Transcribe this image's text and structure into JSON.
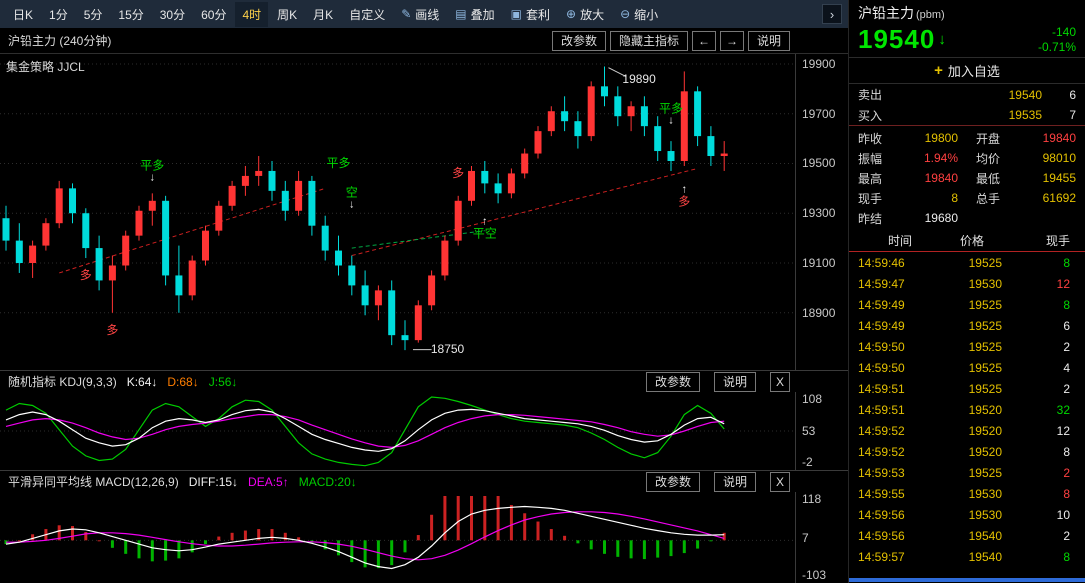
{
  "toolbar": {
    "items": [
      {
        "id": "daily-k",
        "label": "日K"
      },
      {
        "id": "1min",
        "label": "1分"
      },
      {
        "id": "5min",
        "label": "5分"
      },
      {
        "id": "15min",
        "label": "15分"
      },
      {
        "id": "30min",
        "label": "30分"
      },
      {
        "id": "60min",
        "label": "60分"
      },
      {
        "id": "4hour",
        "label": "4时",
        "active": true
      },
      {
        "id": "weekly-k",
        "label": "周K"
      },
      {
        "id": "monthly-k",
        "label": "月K"
      },
      {
        "id": "custom-period",
        "label": "自定义"
      },
      {
        "id": "draw-line",
        "label": "画线",
        "icon": "pencil-icon",
        "glyph": "✎"
      },
      {
        "id": "overlay",
        "label": "叠加",
        "icon": "layers-icon",
        "glyph": "▤"
      },
      {
        "id": "arbitrage",
        "label": "套利",
        "icon": "arbitrage-icon",
        "glyph": "▣"
      },
      {
        "id": "zoom-in",
        "label": "放大",
        "icon": "zoom-in-icon",
        "glyph": "⊕"
      },
      {
        "id": "zoom-out",
        "label": "缩小",
        "icon": "zoom-out-icon",
        "glyph": "⊖"
      }
    ],
    "expand": "›"
  },
  "chart_header": {
    "title": "沪铅主力 (240分钟)",
    "buttons": [
      "改参数",
      "隐藏主指标",
      "←",
      "→",
      "说明"
    ]
  },
  "main_chart": {
    "strategy_label": "集金策略 JJCL",
    "annotations": [
      {
        "text": "多",
        "color": "r",
        "ci": 6,
        "p": 19050
      },
      {
        "text": "多",
        "color": "r",
        "ci": 8,
        "p": 18830
      },
      {
        "text": "平多",
        "color": "g",
        "ci": 11,
        "p": 19470,
        "arrow": "down"
      },
      {
        "text": "平多",
        "color": "g",
        "ci": 25,
        "p": 19500
      },
      {
        "text": "空",
        "color": "g",
        "ci": 26,
        "p": 19360,
        "arrow": "down"
      },
      {
        "text": "多",
        "color": "r",
        "ci": 34,
        "p": 19460
      },
      {
        "text": "平空",
        "color": "g",
        "ci": 36,
        "p": 19240,
        "arrow": "up"
      },
      {
        "text": "平多",
        "color": "g",
        "ci": 50,
        "p": 19700,
        "arrow": "down"
      },
      {
        "text": "多",
        "color": "r",
        "ci": 51,
        "p": 19370,
        "arrow": "up"
      },
      {
        "text": "19890",
        "color": "w",
        "ci": 47.6,
        "p": 19840
      },
      {
        "text": "18750",
        "color": "w",
        "ci": 33.2,
        "p": 18755
      }
    ]
  },
  "kdj": {
    "title": "随机指标 KDJ(9,3,3)",
    "k": "K:64↓",
    "d": "D:68↓",
    "j": "J:56↓",
    "buttons": [
      "改参数",
      "说明",
      "X"
    ],
    "axis_labels": [
      108,
      53,
      -2
    ]
  },
  "macd": {
    "title": "平滑异同平均线 MACD(12,26,9)",
    "diff": "DIFF:15↓",
    "dea": "DEA:5↑",
    "macd": "MACD:20↓",
    "buttons": [
      "改参数",
      "说明",
      "X"
    ],
    "axis_labels": [
      118,
      7,
      -103
    ]
  },
  "quote": {
    "name": "沪铅主力",
    "unit": "(pbm)",
    "last": "19540",
    "direction": "↓",
    "change": "-140",
    "change_pct": "-0.71%",
    "add_plus": "+",
    "add_watchlist": "加入自选",
    "ask_label": "卖出",
    "ask_price": "19540",
    "ask_qty": "6",
    "bid_label": "买入",
    "bid_price": "19535",
    "bid_qty": "7",
    "stats": [
      {
        "label": "昨收",
        "value": "19800",
        "color": "yellow"
      },
      {
        "label": "开盘",
        "value": "19840",
        "color": "red"
      },
      {
        "label": "振幅",
        "value": "1.94%",
        "color": "red"
      },
      {
        "label": "均价",
        "value": "98010",
        "color": "yellow"
      },
      {
        "label": "最高",
        "value": "19840",
        "color": "red"
      },
      {
        "label": "最低",
        "value": "19455",
        "color": "yellow"
      },
      {
        "label": "现手",
        "value": "8",
        "color": "yellow"
      },
      {
        "label": "总手",
        "value": "61692",
        "color": "yellow"
      },
      {
        "label": "昨结",
        "value": "19680",
        "color": "white"
      }
    ]
  },
  "tape": {
    "headers": [
      "时间",
      "价格",
      "现手"
    ],
    "rows": [
      {
        "time": "14:59:46",
        "price": "19525",
        "vol": "8",
        "vc": "g"
      },
      {
        "time": "14:59:47",
        "price": "19530",
        "vol": "12",
        "vc": "r"
      },
      {
        "time": "14:59:49",
        "price": "19525",
        "vol": "8",
        "vc": "g"
      },
      {
        "time": "14:59:49",
        "price": "19525",
        "vol": "6",
        "vc": "w"
      },
      {
        "time": "14:59:50",
        "price": "19525",
        "vol": "2",
        "vc": "w"
      },
      {
        "time": "14:59:50",
        "price": "19525",
        "vol": "4",
        "vc": "w"
      },
      {
        "time": "14:59:51",
        "price": "19525",
        "vol": "2",
        "vc": "w"
      },
      {
        "time": "14:59:51",
        "price": "19520",
        "vol": "32",
        "vc": "g"
      },
      {
        "time": "14:59:52",
        "price": "19520",
        "vol": "12",
        "vc": "w"
      },
      {
        "time": "14:59:52",
        "price": "19520",
        "vol": "8",
        "vc": "w"
      },
      {
        "time": "14:59:53",
        "price": "19525",
        "vol": "2",
        "vc": "r"
      },
      {
        "time": "14:59:55",
        "price": "19530",
        "vol": "8",
        "vc": "r"
      },
      {
        "time": "14:59:56",
        "price": "19530",
        "vol": "10",
        "vc": "w"
      },
      {
        "time": "14:59:56",
        "price": "19540",
        "vol": "2",
        "vc": "w"
      },
      {
        "time": "14:59:57",
        "price": "19540",
        "vol": "8",
        "vc": "g"
      }
    ]
  },
  "chart_data": {
    "type": "candlestick",
    "title": "沪铅主力 (240分钟)",
    "ylim": [
      18670,
      19940
    ],
    "y_ticks": [
      19900,
      19700,
      19500,
      19300,
      19100,
      18900
    ],
    "colors": {
      "up": "#ff3434",
      "down": "#00dcdc",
      "hist_up": "#cc2222",
      "hist_down": "#00b400"
    },
    "candles": [
      [
        19280,
        19330,
        19150,
        19190
      ],
      [
        19190,
        19260,
        19060,
        19100
      ],
      [
        19100,
        19190,
        19040,
        19170
      ],
      [
        19170,
        19280,
        19150,
        19260
      ],
      [
        19260,
        19430,
        19240,
        19400
      ],
      [
        19400,
        19420,
        19260,
        19300
      ],
      [
        19300,
        19320,
        19120,
        19160
      ],
      [
        19160,
        19210,
        18990,
        19030
      ],
      [
        19030,
        19130,
        18900,
        19090
      ],
      [
        19090,
        19230,
        19070,
        19210
      ],
      [
        19210,
        19330,
        19190,
        19310
      ],
      [
        19310,
        19380,
        19250,
        19350
      ],
      [
        19350,
        19370,
        19010,
        19050
      ],
      [
        19050,
        19170,
        18900,
        18970
      ],
      [
        18970,
        19130,
        18950,
        19110
      ],
      [
        19110,
        19250,
        19090,
        19230
      ],
      [
        19230,
        19350,
        19210,
        19330
      ],
      [
        19330,
        19430,
        19310,
        19410
      ],
      [
        19410,
        19490,
        19370,
        19450
      ],
      [
        19450,
        19530,
        19410,
        19470
      ],
      [
        19470,
        19510,
        19350,
        19390
      ],
      [
        19390,
        19430,
        19270,
        19310
      ],
      [
        19310,
        19470,
        19290,
        19430
      ],
      [
        19430,
        19450,
        19210,
        19250
      ],
      [
        19250,
        19290,
        19110,
        19150
      ],
      [
        19150,
        19210,
        19050,
        19090
      ],
      [
        19090,
        19130,
        18970,
        19010
      ],
      [
        19010,
        19070,
        18890,
        18930
      ],
      [
        18930,
        19010,
        18870,
        18990
      ],
      [
        18990,
        19030,
        18770,
        18810
      ],
      [
        18810,
        18870,
        18750,
        18790
      ],
      [
        18790,
        18950,
        18780,
        18930
      ],
      [
        18930,
        19070,
        18910,
        19050
      ],
      [
        19050,
        19210,
        19030,
        19190
      ],
      [
        19190,
        19370,
        19170,
        19350
      ],
      [
        19350,
        19490,
        19330,
        19470
      ],
      [
        19470,
        19510,
        19380,
        19420
      ],
      [
        19420,
        19460,
        19340,
        19380
      ],
      [
        19380,
        19480,
        19360,
        19460
      ],
      [
        19460,
        19560,
        19440,
        19540
      ],
      [
        19540,
        19650,
        19520,
        19630
      ],
      [
        19630,
        19730,
        19610,
        19710
      ],
      [
        19710,
        19770,
        19630,
        19670
      ],
      [
        19670,
        19710,
        19560,
        19610
      ],
      [
        19610,
        19830,
        19590,
        19810
      ],
      [
        19810,
        19890,
        19730,
        19770
      ],
      [
        19770,
        19810,
        19650,
        19690
      ],
      [
        19690,
        19750,
        19630,
        19730
      ],
      [
        19730,
        19770,
        19610,
        19650
      ],
      [
        19650,
        19690,
        19510,
        19550
      ],
      [
        19550,
        19590,
        19470,
        19510
      ],
      [
        19510,
        19870,
        19490,
        19790
      ],
      [
        19790,
        19810,
        19570,
        19610
      ],
      [
        19610,
        19650,
        19490,
        19530
      ],
      [
        19530,
        19590,
        19470,
        19540
      ]
    ],
    "trendlines": [
      {
        "ci1": 4,
        "p1": 19060,
        "ci2": 24,
        "p2": 19400,
        "color": "#cc2020",
        "dash": true
      },
      {
        "ci1": 26,
        "p1": 19130,
        "ci2": 52,
        "p2": 19480,
        "color": "#cc2020",
        "dash": true
      },
      {
        "ci1": 26,
        "p1": 19160,
        "ci2": 36,
        "p2": 19230,
        "color": "#00a844",
        "dash": true
      },
      {
        "ci1": 45.3,
        "p1": 19885,
        "ci2": 46.6,
        "p2": 19850,
        "color": "#cccccc",
        "dash": false
      },
      {
        "ci1": 30.6,
        "p1": 18752,
        "ci2": 32,
        "p2": 18752,
        "color": "#cccccc",
        "dash": false
      }
    ],
    "kdj": {
      "ylim": [
        -2,
        108
      ],
      "k": [
        70,
        78,
        82,
        78,
        68,
        55,
        42,
        35,
        30,
        32,
        42,
        58,
        68,
        72,
        70,
        66,
        70,
        78,
        84,
        86,
        82,
        72,
        60,
        48,
        40,
        34,
        28,
        24,
        22,
        26,
        38,
        55,
        70,
        80,
        85,
        86,
        84,
        80,
        76,
        72,
        70,
        68,
        66,
        64,
        60,
        54,
        46,
        40,
        36,
        38,
        48,
        62,
        72,
        74,
        64
      ],
      "d": [
        60,
        65,
        70,
        72,
        70,
        65,
        58,
        50,
        44,
        40,
        42,
        48,
        55,
        60,
        63,
        65,
        68,
        72,
        75,
        78,
        78,
        75,
        70,
        62,
        55,
        48,
        41,
        35,
        30,
        28,
        31,
        38,
        48,
        58,
        66,
        72,
        76,
        78,
        78,
        77,
        75,
        73,
        71,
        69,
        67,
        63,
        58,
        52,
        48,
        45,
        47,
        53,
        60,
        66,
        68
      ],
      "j": [
        85,
        95,
        92,
        80,
        55,
        30,
        15,
        8,
        10,
        25,
        55,
        85,
        95,
        90,
        75,
        60,
        72,
        90,
        100,
        98,
        85,
        60,
        35,
        18,
        10,
        5,
        2,
        0,
        5,
        20,
        55,
        90,
        105,
        103,
        98,
        92,
        85,
        78,
        72,
        68,
        66,
        64,
        62,
        58,
        50,
        40,
        28,
        18,
        12,
        20,
        45,
        78,
        92,
        80,
        56
      ]
    },
    "macd": {
      "ylim": [
        -103,
        118
      ],
      "diff": [
        -10,
        -5,
        5,
        15,
        25,
        30,
        28,
        20,
        10,
        0,
        -10,
        -20,
        -25,
        -28,
        -25,
        -18,
        -10,
        -5,
        0,
        5,
        8,
        5,
        0,
        -8,
        -18,
        -30,
        -45,
        -60,
        -70,
        -75,
        -65,
        -45,
        -15,
        20,
        50,
        70,
        80,
        85,
        88,
        90,
        88,
        85,
        80,
        72,
        64,
        56,
        48,
        40,
        32,
        26,
        20,
        16,
        14,
        14,
        15
      ],
      "dea": [
        -5,
        -5,
        -3,
        0,
        5,
        11,
        17,
        20,
        20,
        18,
        14,
        8,
        2,
        -4,
        -9,
        -13,
        -15,
        -15,
        -13,
        -10,
        -7,
        -5,
        -4,
        -4,
        -6,
        -10,
        -16,
        -24,
        -33,
        -42,
        -49,
        -52,
        -49,
        -40,
        -26,
        -9,
        9,
        26,
        41,
        54,
        63,
        70,
        74,
        76,
        76,
        74,
        70,
        64,
        57,
        49,
        41,
        33,
        25,
        15,
        5
      ]
    }
  }
}
